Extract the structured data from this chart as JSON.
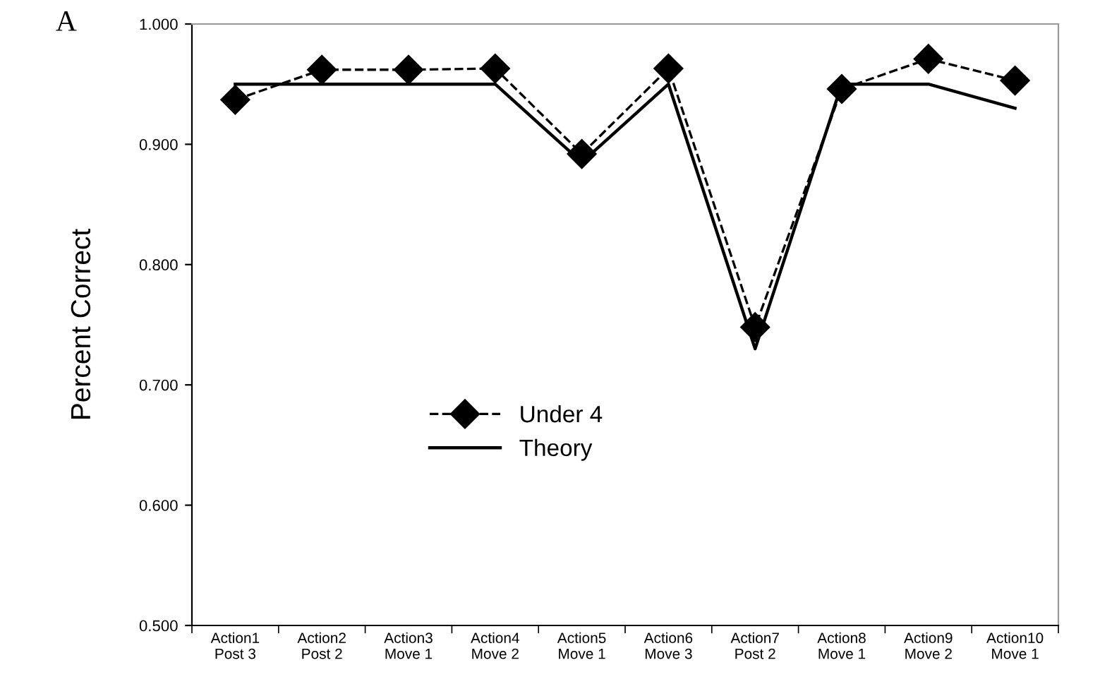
{
  "chart_data": {
    "type": "line",
    "ylabel": "Percent Correct",
    "annotations": [
      "A"
    ],
    "categories": [
      "Action1\nPost 3",
      "Action2\nPost 2",
      "Action3\nMove 1",
      "Action4\nMove 2",
      "Action5\nMove 1",
      "Action6\nMove 3",
      "Action7\nPost 2",
      "Action8\nMove 1",
      "Action9\nMove 2",
      "Action10\nMove 1"
    ],
    "series": [
      {
        "name": "Under 4",
        "color": "#000000",
        "marker": "diamond",
        "line_style": "dashed",
        "values": [
          0.937,
          0.962,
          0.962,
          0.963,
          0.892,
          0.963,
          0.748,
          0.946,
          0.971,
          0.953
        ]
      },
      {
        "name": "Theory",
        "color": "#000000",
        "marker": "none",
        "line_style": "solid",
        "values": [
          0.95,
          0.95,
          0.95,
          0.95,
          0.885,
          0.95,
          0.73,
          0.95,
          0.95,
          0.93
        ]
      }
    ],
    "ylim": [
      0.5,
      1.0
    ],
    "yticks": [
      {
        "value": 0.5,
        "label": "0.500"
      },
      {
        "value": 0.6,
        "label": "0.600"
      },
      {
        "value": 0.7,
        "label": "0.700"
      },
      {
        "value": 0.8,
        "label": "0.800"
      },
      {
        "value": 0.9,
        "label": "0.900"
      },
      {
        "value": 1.0,
        "label": "1.000"
      }
    ],
    "grid": false,
    "legend": "center left"
  }
}
